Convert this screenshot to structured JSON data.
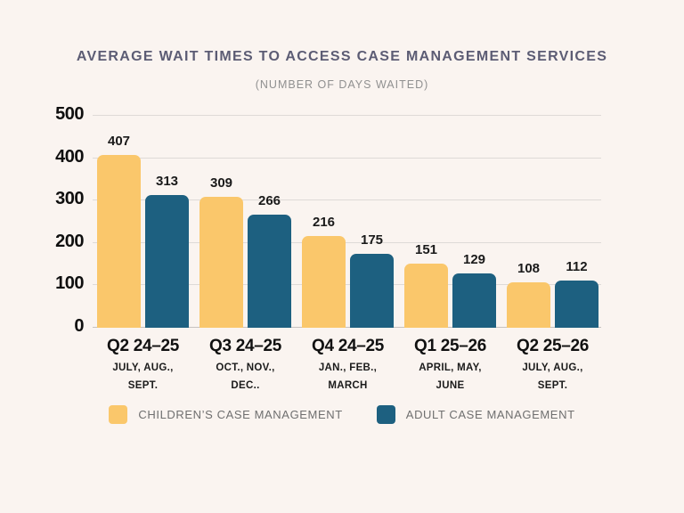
{
  "colors": {
    "background": "#faf4f0",
    "title_text": "#5c5c74",
    "subtitle_text": "#909090",
    "childrens_series": "#fac76b",
    "adult_series": "#1d6080",
    "gridline": "#dedad7",
    "axis_baseline": "#c6c2c0",
    "label_text": "#111111",
    "legend_text": "#6f6f6f"
  },
  "chart_data": {
    "type": "bar",
    "title": "AVERAGE WAIT TIMES TO ACCESS CASE MANAGEMENT SERVICES",
    "subtitle": "(NUMBER OF DAYS WAITED)",
    "categories": [
      "Q2 24–25",
      "Q3 24–25",
      "Q4 24–25",
      "Q1 25–26",
      "Q2 25–26"
    ],
    "category_sublabels": [
      [
        "JULY, AUG.,",
        "SEPT."
      ],
      [
        "OCT., NOV.,",
        "DEC.."
      ],
      [
        "JAN., FEB.,",
        "MARCH"
      ],
      [
        "APRIL, MAY,",
        "JUNE"
      ],
      [
        "JULY, AUG.,",
        "SEPT."
      ]
    ],
    "series": [
      {
        "name": "CHILDREN’S CASE MANAGEMENT",
        "color": "#fac76b",
        "values": [
          407,
          309,
          216,
          151,
          108
        ]
      },
      {
        "name": "ADULT CASE MANAGEMENT",
        "color": "#1d6080",
        "values": [
          313,
          266,
          175,
          129,
          112
        ]
      }
    ],
    "ylim": [
      0,
      500
    ],
    "yticks": [
      0,
      100,
      200,
      300,
      400,
      500
    ],
    "grid": true,
    "legend_position": "bottom"
  }
}
